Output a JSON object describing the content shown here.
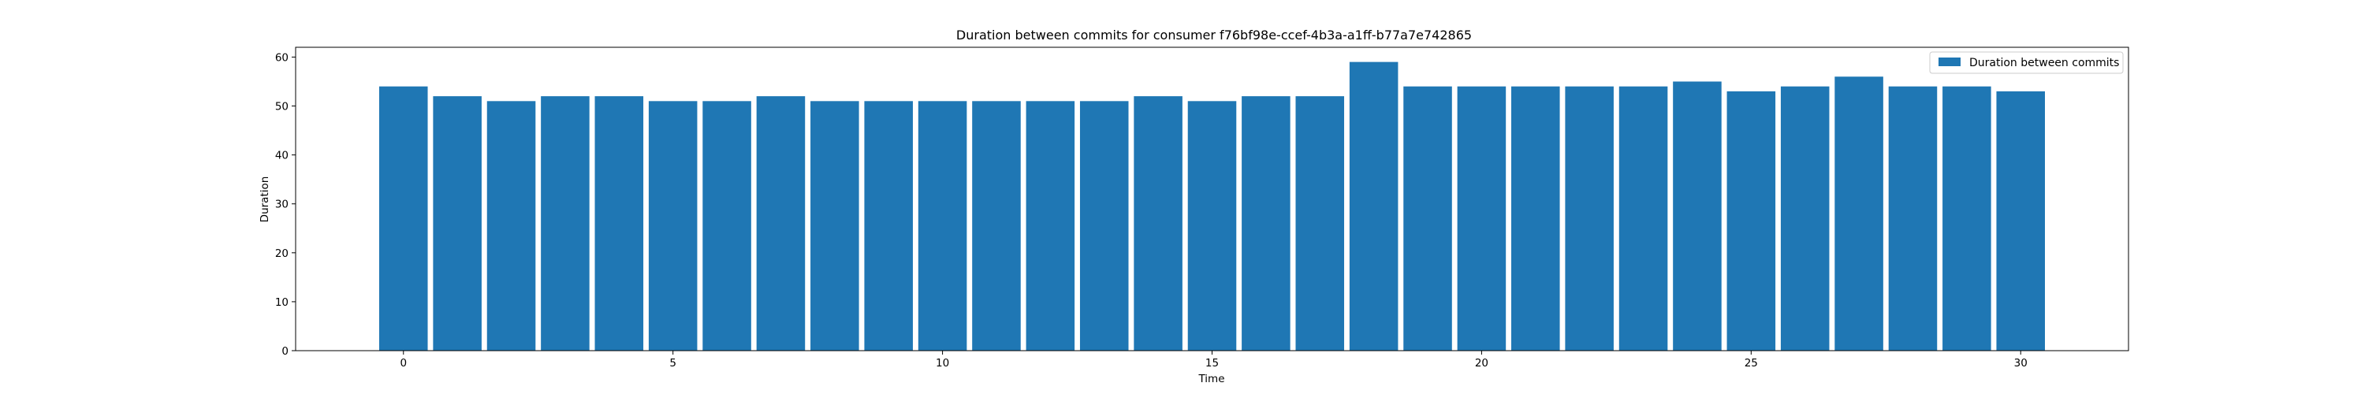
{
  "chart_data": {
    "type": "bar",
    "title": "Duration between commits for consumer f76bf98e-ccef-4b3a-a1ff-b77a7e742865",
    "xlabel": "Time",
    "ylabel": "Duration",
    "x": [
      0,
      1,
      2,
      3,
      4,
      5,
      6,
      7,
      8,
      9,
      10,
      11,
      12,
      13,
      14,
      15,
      16,
      17,
      18,
      19,
      20,
      21,
      22,
      23,
      24,
      25,
      26,
      27,
      28,
      29,
      30
    ],
    "series": [
      {
        "name": "Duration between commits",
        "color": "#1f77b4",
        "values": [
          54,
          52,
          51,
          52,
          52,
          51,
          51,
          52,
          51,
          51,
          51,
          51,
          51,
          51,
          52,
          51,
          52,
          52,
          59,
          54,
          54,
          54,
          54,
          54,
          55,
          53,
          54,
          56,
          54,
          54,
          53
        ]
      }
    ],
    "xlim": [
      -2.0,
      32.0
    ],
    "ylim": [
      0,
      62
    ],
    "xticks": [
      0,
      5,
      10,
      15,
      20,
      25,
      30
    ],
    "yticks": [
      0,
      10,
      20,
      30,
      40,
      50,
      60
    ],
    "bar_width": 0.9,
    "grid": false,
    "legend_position": "top-right"
  }
}
